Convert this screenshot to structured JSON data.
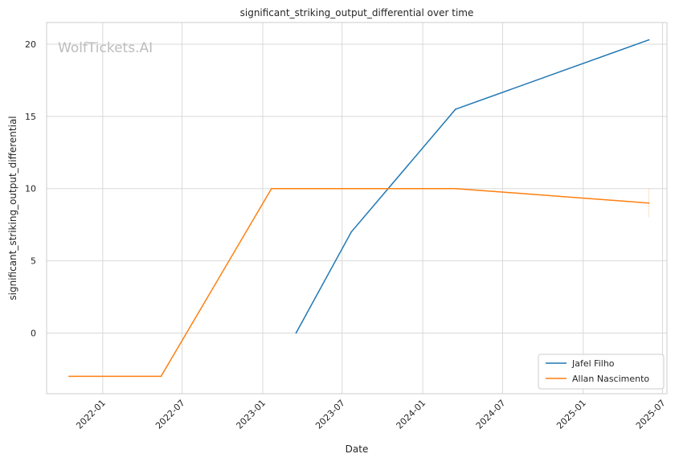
{
  "watermark": "WolfTickets.AI",
  "chart_data": {
    "type": "line",
    "title": "significant_striking_output_differential over time",
    "xlabel": "Date",
    "ylabel": "significant_striking_output_differential",
    "x_axis_type": "date",
    "xlim": [
      "2021-08-26",
      "2025-07-11"
    ],
    "ylim": [
      -4.2,
      21.5
    ],
    "x_ticks": [
      "2022-01",
      "2022-07",
      "2023-01",
      "2023-07",
      "2024-01",
      "2024-07",
      "2025-01",
      "2025-07"
    ],
    "y_ticks": [
      0,
      5,
      10,
      15,
      20
    ],
    "grid": true,
    "legend_position": "lower-right",
    "series": [
      {
        "name": "Jafel Filho",
        "color": "#1f77b4",
        "points": [
          {
            "x": "2023-03-18",
            "y": 0
          },
          {
            "x": "2023-07-22",
            "y": 7
          },
          {
            "x": "2024-03-16",
            "y": 15.5
          },
          {
            "x": "2025-05-31",
            "y": 20.3
          }
        ]
      },
      {
        "name": "Allan Nascimento",
        "color": "#ff7f0e",
        "points": [
          {
            "x": "2021-10-16",
            "y": -3
          },
          {
            "x": "2022-05-14",
            "y": -3
          },
          {
            "x": "2023-01-21",
            "y": 10
          },
          {
            "x": "2024-03-16",
            "y": 10
          },
          {
            "x": "2025-05-31",
            "y": 9
          }
        ]
      }
    ]
  }
}
